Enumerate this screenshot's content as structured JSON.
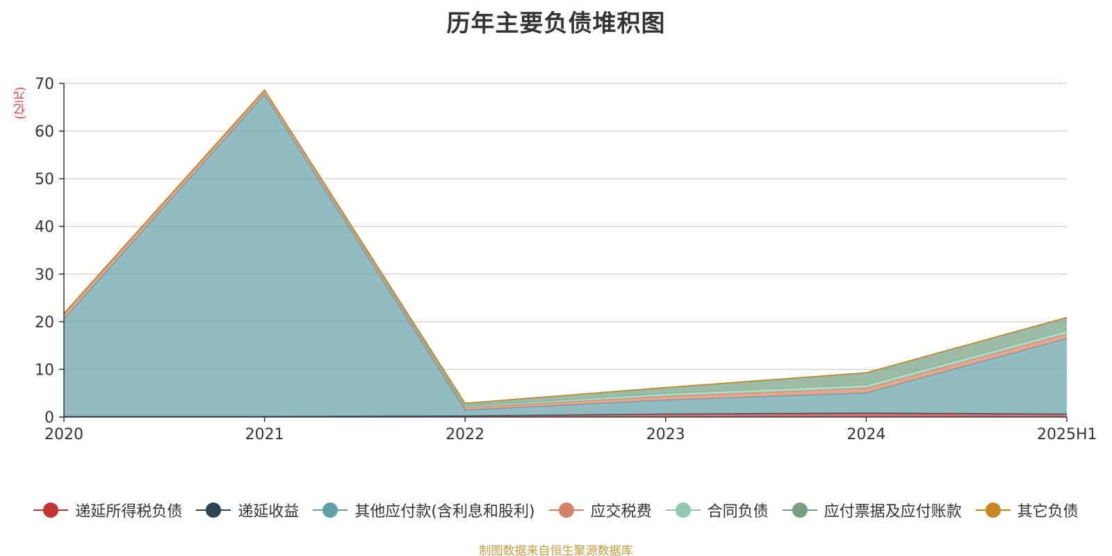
{
  "chart_data": {
    "type": "area",
    "stacked": true,
    "title": "历年主要负债堆积图",
    "unit_label": "(亿元)",
    "categories": [
      "2020",
      "2021",
      "2022",
      "2023",
      "2024",
      "2025H1"
    ],
    "ylim": [
      0,
      70
    ],
    "yticks": [
      0,
      10,
      20,
      30,
      40,
      50,
      60,
      70
    ],
    "grid": true,
    "legend_position": "bottom",
    "series": [
      {
        "name": "递延所得税负债",
        "color": "#c23531",
        "values": [
          0.1,
          0.1,
          0.2,
          0.6,
          0.8,
          0.6
        ]
      },
      {
        "name": "递延收益",
        "color": "#2f4554",
        "values": [
          0.05,
          0.05,
          0.05,
          0.05,
          0.05,
          0.05
        ]
      },
      {
        "name": "其他应付款(含利息和股利)",
        "color": "#61a0a8",
        "values": [
          20.4,
          67.5,
          1.2,
          2.9,
          4.2,
          15.8
        ]
      },
      {
        "name": "应交税费",
        "color": "#d48265",
        "values": [
          1.0,
          0.8,
          0.5,
          0.8,
          1.0,
          1.0
        ]
      },
      {
        "name": "合同负债",
        "color": "#91c7ae",
        "values": [
          0.1,
          0.1,
          0.3,
          0.6,
          0.7,
          0.7
        ]
      },
      {
        "name": "应付票据及应付账款",
        "color": "#749f83",
        "values": [
          0.05,
          0.05,
          0.6,
          1.2,
          2.5,
          2.7
        ]
      },
      {
        "name": "其它负债",
        "color": "#ca8622",
        "values": [
          0.05,
          0.05,
          0.05,
          0.05,
          0.05,
          0.05
        ]
      }
    ]
  },
  "source_note": "制图数据来自恒生聚源数据库"
}
